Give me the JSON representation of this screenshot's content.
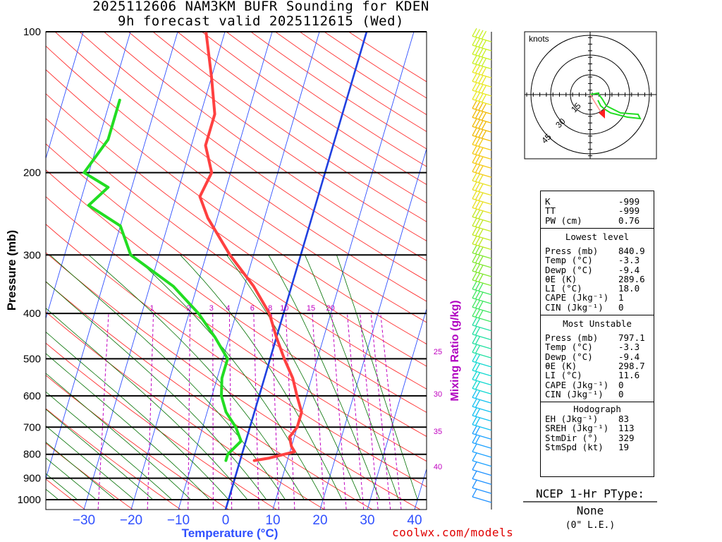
{
  "header": {
    "title_line1": "2025112606 NAM3KM BUFR Sounding for KDEN",
    "title_line2": "9h forecast valid 2025112615 (Wed)"
  },
  "skewt": {
    "ylabel": "Pressure (mb)",
    "xlabel": "Temperature (°C)",
    "pressure_ticks": [
      100,
      200,
      300,
      400,
      500,
      600,
      700,
      800,
      900,
      1000
    ],
    "temp_ticks": [
      -30,
      -20,
      -10,
      0,
      10,
      20,
      30,
      40
    ],
    "mixing_ratio_label": "Mixing Ratio (g/kg)",
    "mixing_ratio_top": [
      "1",
      "2",
      "3",
      "4",
      "6",
      "8",
      "10",
      "15",
      "20"
    ],
    "mixing_ratio_side": [
      "25",
      "30",
      "35",
      "40"
    ],
    "colors": {
      "temperature": "#ff4040",
      "dewpoint": "#22dd22",
      "isotherm": "#3050ff",
      "freezing": "#2040e0",
      "dry_adiabat": "#ff3030",
      "moist_adiabat": "#007000",
      "mixing_ratio": "#c000c0"
    }
  },
  "hodograph": {
    "label": "knots",
    "ring_labels": [
      "15",
      "30",
      "45"
    ]
  },
  "stats": {
    "top": [
      {
        "label": "K",
        "value": "-999"
      },
      {
        "label": "TT",
        "value": "-999"
      },
      {
        "label": "PW (cm)",
        "value": "0.76"
      }
    ],
    "lowest_title": "Lowest level",
    "lowest": [
      {
        "label": "Press (mb)",
        "value": "840.9"
      },
      {
        "label": "Temp (°C)",
        "value": "-3.3"
      },
      {
        "label": "Dewp (°C)",
        "value": "-9.4"
      },
      {
        "label": "θE (K)",
        "value": "289.6"
      },
      {
        "label": "LI (°C)",
        "value": "18.0"
      },
      {
        "label": "CAPE (Jkg⁻¹)",
        "value": "1"
      },
      {
        "label": "CIN (Jkg⁻¹)",
        "value": "0"
      }
    ],
    "unstable_title": "Most Unstable",
    "unstable": [
      {
        "label": "Press (mb)",
        "value": "797.1"
      },
      {
        "label": "Temp (°C)",
        "value": "-3.3"
      },
      {
        "label": "Dewp (°C)",
        "value": "-9.4"
      },
      {
        "label": "θE (K)",
        "value": "298.7"
      },
      {
        "label": "LI (°C)",
        "value": "11.6"
      },
      {
        "label": "CAPE (Jkg⁻¹)",
        "value": "0"
      },
      {
        "label": "CIN (Jkg⁻¹)",
        "value": "0"
      }
    ],
    "hodo_title": "Hodograph",
    "hodo": [
      {
        "label": "EH (Jkg⁻¹)",
        "value": "83"
      },
      {
        "label": "SREH (Jkg⁻¹)",
        "value": "113"
      },
      {
        "label": "StmDir (°)",
        "value": "329"
      },
      {
        "label": "StmSpd (kt)",
        "value": "19"
      }
    ]
  },
  "ptype": {
    "title": "NCEP 1-Hr PType:",
    "value": "None",
    "accum": "(0\" L.E.)"
  },
  "footer": {
    "credit": "coolwx.com/models"
  },
  "chart_data": {
    "type": "line",
    "series": [
      {
        "name": "Temperature",
        "points": [
          [
            825,
            3
          ],
          [
            815,
            6
          ],
          [
            790,
            11
          ],
          [
            770,
            10
          ],
          [
            735,
            9
          ],
          [
            700,
            10
          ],
          [
            650,
            10
          ],
          [
            600,
            8
          ],
          [
            550,
            6
          ],
          [
            500,
            3
          ],
          [
            450,
            0
          ],
          [
            400,
            -3
          ],
          [
            350,
            -8
          ],
          [
            300,
            -15
          ],
          [
            250,
            -22
          ],
          [
            225,
            -25
          ],
          [
            200,
            -24
          ],
          [
            175,
            -27
          ],
          [
            150,
            -27
          ],
          [
            125,
            -30
          ],
          [
            100,
            -34
          ]
        ]
      },
      {
        "name": "Dewpoint",
        "points": [
          [
            825,
            -3
          ],
          [
            800,
            -3
          ],
          [
            750,
            -1
          ],
          [
            700,
            -3
          ],
          [
            650,
            -6
          ],
          [
            600,
            -8
          ],
          [
            550,
            -9
          ],
          [
            500,
            -9
          ],
          [
            450,
            -13
          ],
          [
            400,
            -18
          ],
          [
            350,
            -25
          ],
          [
            300,
            -36
          ],
          [
            260,
            -40
          ],
          [
            235,
            -48
          ],
          [
            215,
            -45
          ],
          [
            200,
            -51
          ],
          [
            170,
            -48
          ],
          [
            140,
            -48
          ]
        ]
      }
    ],
    "xlabel": "Temperature (°C)",
    "ylabel": "Pressure (mb)",
    "xlim": [
      -40,
      40
    ],
    "ylim": [
      1050,
      100
    ],
    "y_scale": "log",
    "grid": true
  }
}
